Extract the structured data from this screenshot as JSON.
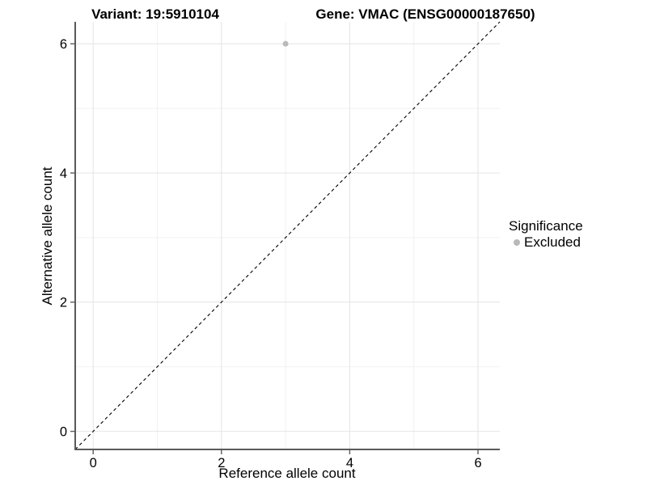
{
  "header": {
    "variant_title": "Variant: 19:5910104",
    "gene_title": "Gene: VMAC (ENSG00000187650)"
  },
  "chart_data": {
    "type": "scatter",
    "xlabel": "Reference allele count",
    "ylabel": "Alternative allele count",
    "xlim": [
      -0.28,
      6.34
    ],
    "ylim": [
      -0.28,
      6.34
    ],
    "x_ticks": [
      0,
      2,
      4,
      6
    ],
    "y_ticks": [
      0,
      2,
      4,
      6
    ],
    "minor_ticks": [
      1,
      3,
      5
    ],
    "grid": "major+minor",
    "points": [
      {
        "x": 3,
        "y": 6,
        "series": "Excluded"
      }
    ],
    "reference_line": {
      "slope": 1,
      "intercept": 0,
      "style": "dashed"
    },
    "legend": {
      "title": "Significance",
      "position": "right",
      "entries": [
        {
          "label": "Excluded",
          "color": "#b9b9b9",
          "marker": "circle"
        }
      ]
    },
    "colors": {
      "point": "#b9b9b9",
      "grid_major": "#e4e4e4",
      "grid_minor": "#f1f1f1",
      "axis_line": "#5a5a5a",
      "reference_line": "#000000",
      "text": "#000000",
      "background": "#ffffff"
    }
  }
}
